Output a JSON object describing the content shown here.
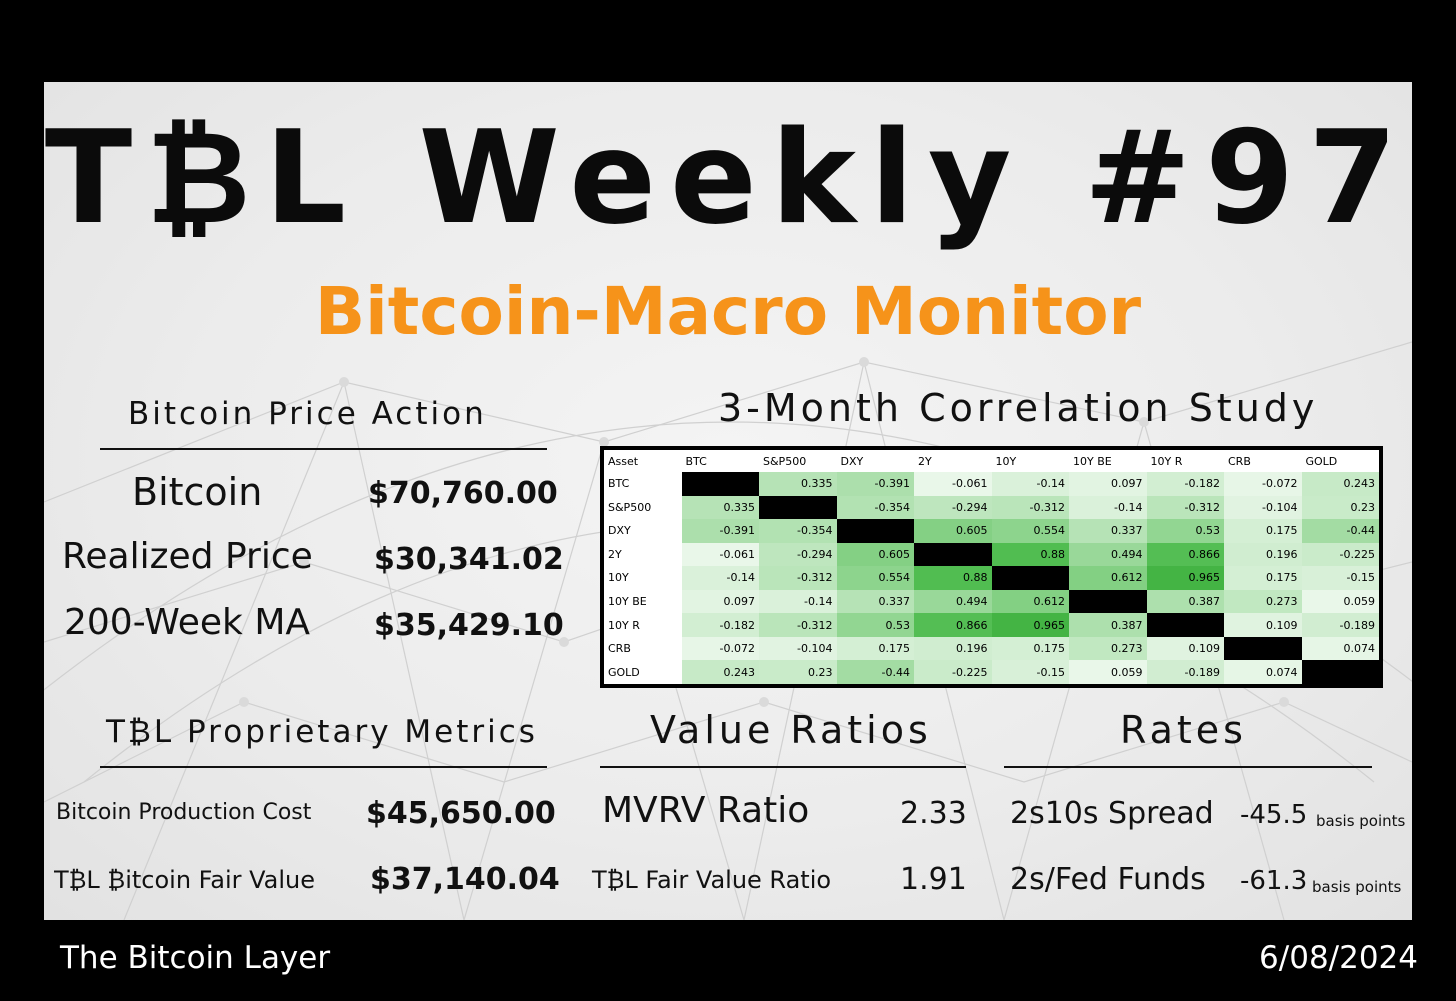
{
  "header": {
    "title": "T₿L Weekly #97",
    "subtitle": "Bitcoin-Macro Monitor"
  },
  "price_action": {
    "heading": "Bitcoin Price Action",
    "rows": [
      {
        "label": "Bitcoin",
        "value": "$70,760.00"
      },
      {
        "label": "Realized Price",
        "value": "$30,341.02"
      },
      {
        "label": "200-Week MA",
        "value": "$35,429.10"
      }
    ]
  },
  "correlation": {
    "heading": "3-Month Correlation Study",
    "columns": [
      "Asset",
      "BTC",
      "S&P500",
      "DXY",
      "2Y",
      "10Y",
      "10Y BE",
      "10Y R",
      "CRB",
      "GOLD"
    ],
    "rows": [
      {
        "asset": "BTC",
        "values": [
          null,
          "0.335",
          "-0.391",
          "-0.061",
          "-0.14",
          "0.097",
          "-0.182",
          "-0.072",
          "0.243"
        ]
      },
      {
        "asset": "S&P500",
        "values": [
          "0.335",
          null,
          "-0.354",
          "-0.294",
          "-0.312",
          "-0.14",
          "-0.312",
          "-0.104",
          "0.23"
        ]
      },
      {
        "asset": "DXY",
        "values": [
          "-0.391",
          "-0.354",
          null,
          "0.605",
          "0.554",
          "0.337",
          "0.53",
          "0.175",
          "-0.44"
        ]
      },
      {
        "asset": "2Y",
        "values": [
          "-0.061",
          "-0.294",
          "0.605",
          null,
          "0.88",
          "0.494",
          "0.866",
          "0.196",
          "-0.225"
        ]
      },
      {
        "asset": "10Y",
        "values": [
          "-0.14",
          "-0.312",
          "0.554",
          "0.88",
          null,
          "0.612",
          "0.965",
          "0.175",
          "-0.15"
        ]
      },
      {
        "asset": "10Y BE",
        "values": [
          "0.097",
          "-0.14",
          "0.337",
          "0.494",
          "0.612",
          null,
          "0.387",
          "0.273",
          "0.059"
        ]
      },
      {
        "asset": "10Y R",
        "values": [
          "-0.182",
          "-0.312",
          "0.53",
          "0.866",
          "0.965",
          "0.387",
          null,
          "0.109",
          "-0.189"
        ]
      },
      {
        "asset": "CRB",
        "values": [
          "-0.072",
          "-0.104",
          "0.175",
          "0.196",
          "0.175",
          "0.273",
          "0.109",
          null,
          "0.074"
        ]
      },
      {
        "asset": "GOLD",
        "values": [
          "0.243",
          "0.23",
          "-0.44",
          "-0.225",
          "-0.15",
          "0.059",
          "-0.189",
          "0.074",
          null
        ]
      }
    ]
  },
  "proprietary": {
    "heading": "T₿L Proprietary Metrics",
    "rows": [
      {
        "label": "Bitcoin Production Cost",
        "value": "$45,650.00"
      },
      {
        "label": "T₿L ₿itcoin Fair Value",
        "value": "$37,140.04"
      }
    ]
  },
  "value_ratios": {
    "heading": "Value Ratios",
    "rows": [
      {
        "label": "MVRV Ratio",
        "value": "2.33"
      },
      {
        "label": "T₿L Fair Value Ratio",
        "value": "1.91"
      }
    ]
  },
  "rates": {
    "heading": "Rates",
    "unit": "basis points",
    "rows": [
      {
        "label": "2s10s Spread",
        "value": "-45.5"
      },
      {
        "label": "2s/Fed Funds",
        "value": "-61.3"
      }
    ]
  },
  "footer": {
    "brand": "The Bitcoin Layer",
    "date": "6/08/2024"
  },
  "colors": {
    "accent": "#f6931a",
    "background": "#000000",
    "panel": "#ececec"
  }
}
